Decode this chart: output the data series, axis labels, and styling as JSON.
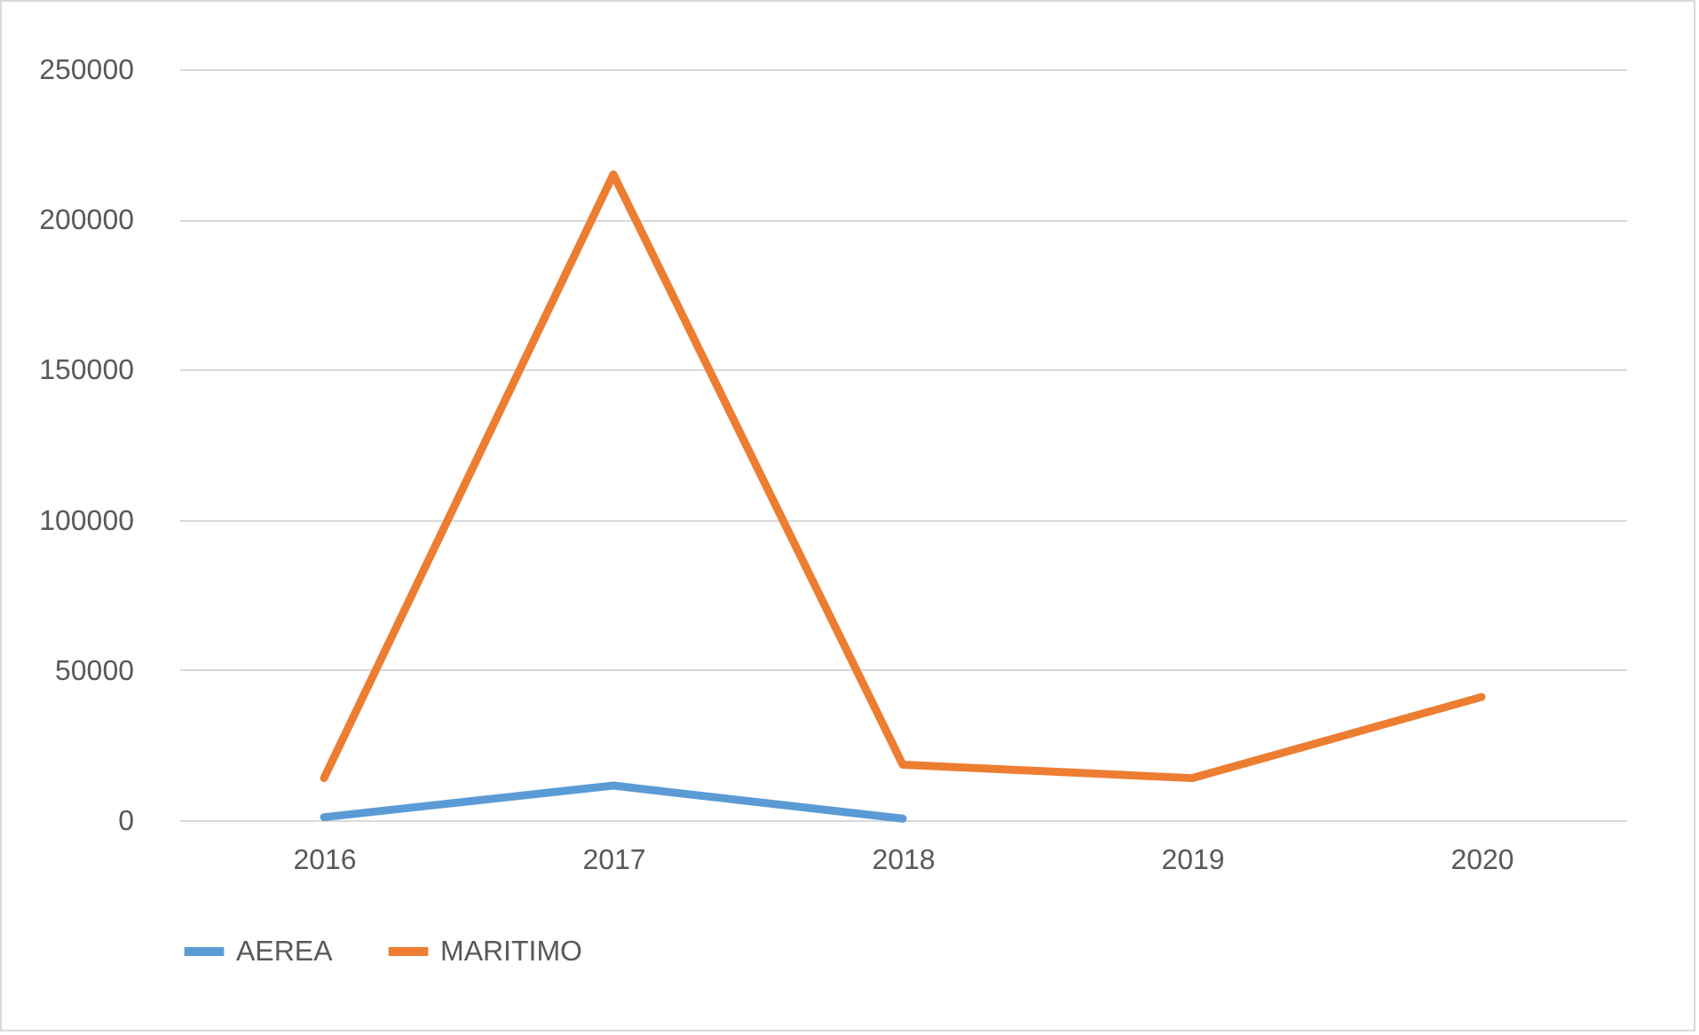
{
  "chart_data": {
    "type": "line",
    "categories": [
      "2016",
      "2017",
      "2018",
      "2019",
      "2020"
    ],
    "series": [
      {
        "name": "AEREA",
        "color": "#5b9bd5",
        "values": [
          1000,
          11500,
          500,
          null,
          null
        ]
      },
      {
        "name": "MARITIMO",
        "color": "#ed7d31",
        "values": [
          14000,
          215000,
          18500,
          14000,
          41000
        ]
      }
    ],
    "ylim": [
      0,
      250000
    ],
    "yticks": [
      0,
      50000,
      100000,
      150000,
      200000,
      250000
    ],
    "grid": "y",
    "legend": "bottom",
    "marker": "none",
    "line_style": "solid"
  }
}
